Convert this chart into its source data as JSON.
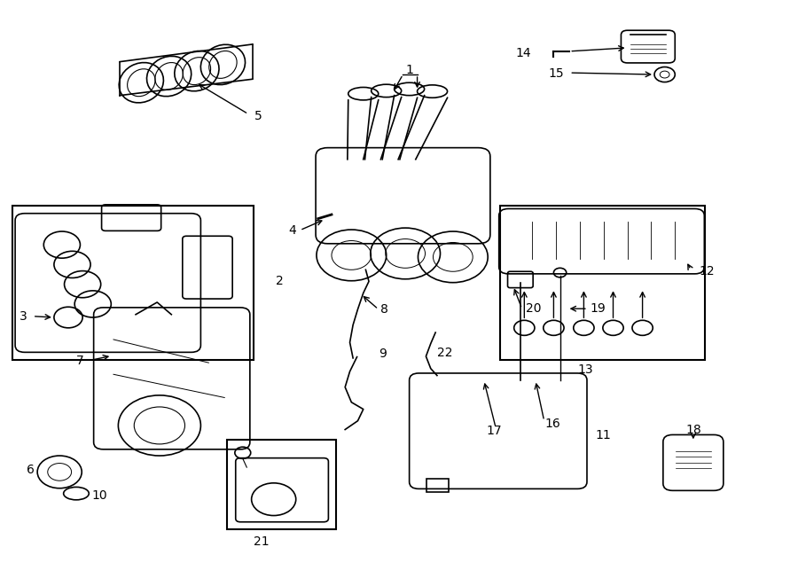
{
  "bg_color": "#ffffff",
  "line_color": "#000000",
  "figsize": [
    9.0,
    6.61
  ],
  "dpi": 100
}
